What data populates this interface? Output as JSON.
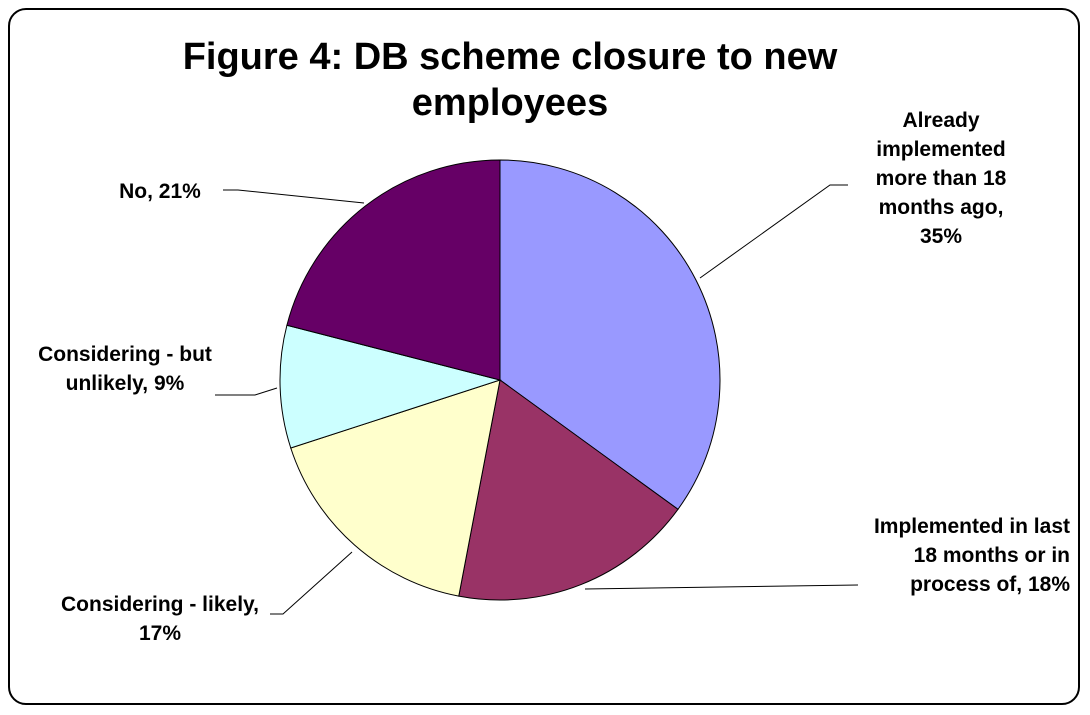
{
  "chart_data": {
    "type": "pie",
    "title": "Figure 4: DB scheme closure to new employees",
    "slices": [
      {
        "label": "Already implemented more than 18 months ago",
        "value": 35,
        "display": "Already implemented more than 18 months ago, 35%",
        "color": "#9999ff"
      },
      {
        "label": "Implemented in last 18 months or in process of",
        "value": 18,
        "display": "Implemented in last 18 months or in process of, 18%",
        "color": "#993366"
      },
      {
        "label": "Considering - likely",
        "value": 17,
        "display": "Considering - likely, 17%",
        "color": "#ffffcc"
      },
      {
        "label": "Considering - but unlikely",
        "value": 9,
        "display": "Considering - but unlikely, 9%",
        "color": "#ccffff"
      },
      {
        "label": "No",
        "value": 21,
        "display": "No, 21%",
        "color": "#660066"
      }
    ]
  }
}
